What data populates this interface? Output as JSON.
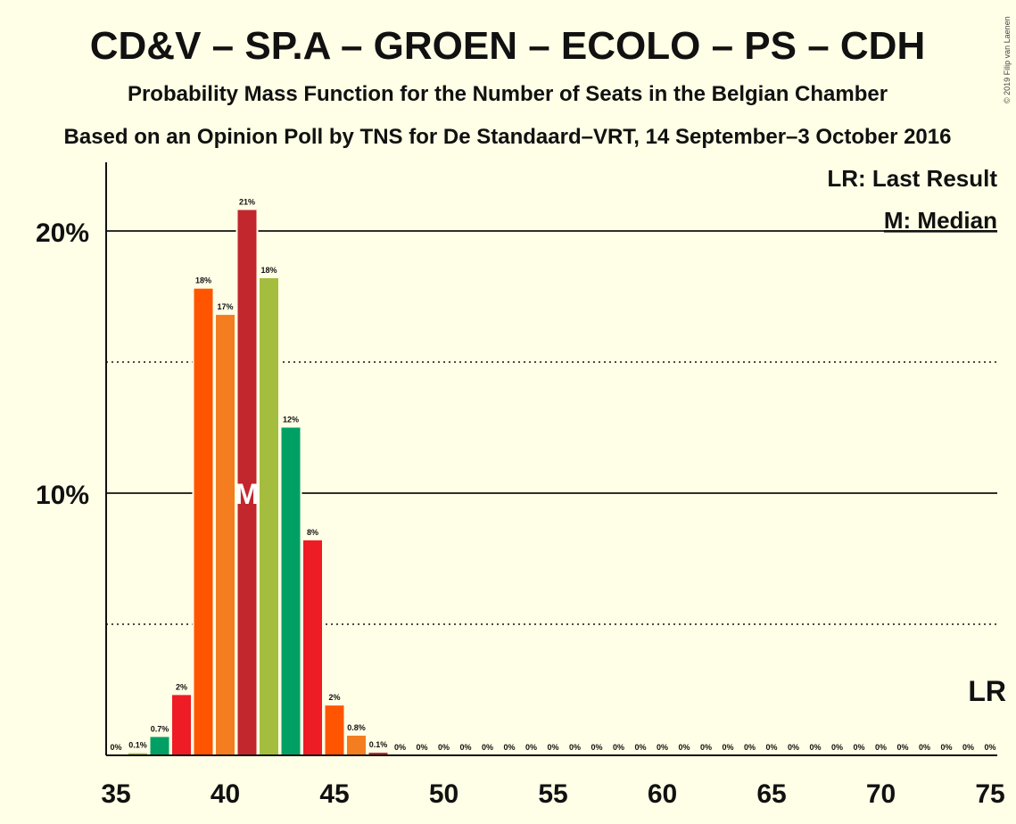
{
  "chart_data": {
    "type": "bar",
    "title": "CD&V – SP.A – GROEN – ECOLO – PS – CDH",
    "subtitle": "Probability Mass Function for the Number of Seats in the Belgian Chamber",
    "subtitle2": "Based on an Opinion Poll by TNS for De Standaard–VRT, 14 September–3 October 2016",
    "copyright": "© 2019 Filip van Laenen",
    "legend": {
      "last_result": "LR: Last Result",
      "median": "M: Median",
      "placement": "top-right"
    },
    "lr_marker": "LR",
    "median_marker": "M",
    "median_seat": 41,
    "last_result_seat": 75,
    "ylim": [
      0,
      22.5
    ],
    "xlim": [
      35,
      75
    ],
    "y_ticks": [
      {
        "value": 10,
        "label": "10%"
      },
      {
        "value": 20,
        "label": "20%"
      }
    ],
    "y_minor_ticks": [
      5,
      15
    ],
    "x_ticks": [
      35,
      40,
      45,
      50,
      55,
      60,
      65,
      70,
      75
    ],
    "bar_colors": [
      "#C1272D",
      "#A5BD3E",
      "#00A064",
      "#EE1C25",
      "#FF5500",
      "#F47D20"
    ],
    "seats": [
      35,
      36,
      37,
      38,
      39,
      40,
      41,
      42,
      43,
      44,
      45,
      46,
      47,
      48,
      49,
      50,
      51,
      52,
      53,
      54,
      55,
      56,
      57,
      58,
      59,
      60,
      61,
      62,
      63,
      64,
      65,
      66,
      67,
      68,
      69,
      70,
      71,
      72,
      73,
      74,
      75
    ],
    "values": [
      0,
      0.08,
      0.7,
      2.3,
      17.8,
      16.8,
      20.8,
      18.2,
      12.5,
      8.2,
      1.9,
      0.75,
      0.1,
      0,
      0,
      0,
      0,
      0,
      0,
      0,
      0,
      0,
      0,
      0,
      0,
      0,
      0,
      0,
      0,
      0,
      0,
      0,
      0,
      0,
      0,
      0,
      0,
      0,
      0,
      0,
      0
    ],
    "labels": [
      "0%",
      "0.1%",
      "0.7%",
      "2%",
      "18%",
      "17%",
      "21%",
      "18%",
      "12%",
      "8%",
      "2%",
      "0.8%",
      "0.1%",
      "0%",
      "0%",
      "0%",
      "0%",
      "0%",
      "0%",
      "0%",
      "0%",
      "0%",
      "0%",
      "0%",
      "0%",
      "0%",
      "0%",
      "0%",
      "0%",
      "0%",
      "0%",
      "0%",
      "0%",
      "0%",
      "0%",
      "0%",
      "0%",
      "0%",
      "0%",
      "0%",
      "0%"
    ]
  }
}
